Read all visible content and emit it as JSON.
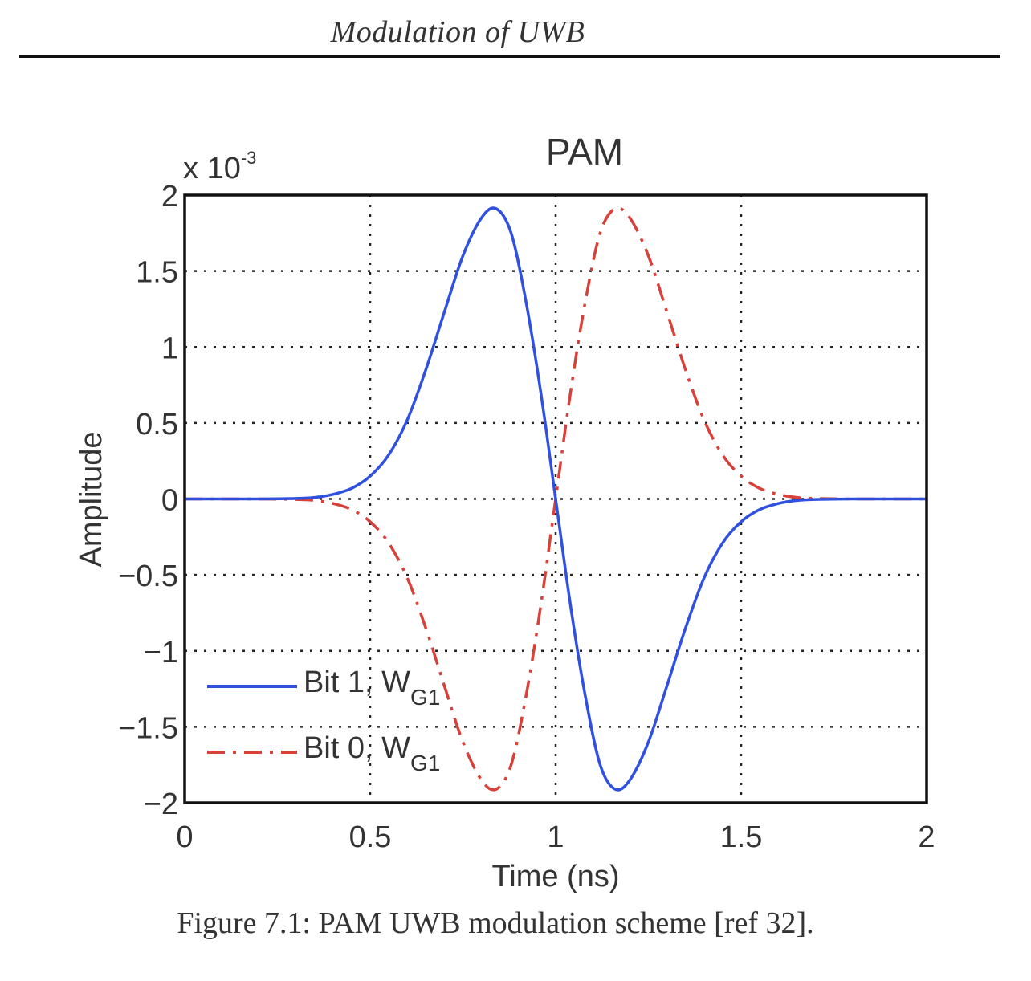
{
  "page": {
    "header": "Modulation of UWB",
    "caption": "Figure 7.1: PAM UWB modulation scheme [ref 32]."
  },
  "chart_data": {
    "type": "line",
    "title": "PAM",
    "xlabel": "Time (ns)",
    "ylabel": "Amplitude",
    "y_multiplier": "x 10",
    "y_multiplier_exponent": "-3",
    "xlim": [
      0,
      2
    ],
    "ylim": [
      -2,
      2
    ],
    "x_ticks": [
      "0",
      "0.5",
      "1",
      "1.5",
      "2"
    ],
    "y_ticks": [
      "−2",
      "−1.5",
      "−1",
      "−0.5",
      "0",
      "0.5",
      "1",
      "1.5",
      "2"
    ],
    "grid": true,
    "legend_position": "bottom-left",
    "series": [
      {
        "name": "Bit 1, W",
        "name_subscript": "G1",
        "color": "#3050e0",
        "style": "solid",
        "x": [
          0,
          0.1,
          0.2,
          0.3,
          0.35,
          0.4,
          0.45,
          0.5,
          0.55,
          0.6,
          0.65,
          0.7,
          0.75,
          0.8,
          0.84,
          0.88,
          0.92,
          0.96,
          1.0,
          1.04,
          1.08,
          1.12,
          1.16,
          1.2,
          1.25,
          1.3,
          1.35,
          1.4,
          1.45,
          1.5,
          1.55,
          1.6,
          1.65,
          1.7,
          1.8,
          1.9,
          2.0
        ],
        "y": [
          0,
          0,
          0,
          0.003,
          0.01,
          0.03,
          0.07,
          0.15,
          0.29,
          0.52,
          0.85,
          1.23,
          1.6,
          1.85,
          1.91,
          1.75,
          1.3,
          0.7,
          0,
          -0.7,
          -1.3,
          -1.75,
          -1.91,
          -1.85,
          -1.6,
          -1.23,
          -0.85,
          -0.52,
          -0.29,
          -0.15,
          -0.07,
          -0.03,
          -0.01,
          -0.003,
          0,
          0,
          0
        ]
      },
      {
        "name": "Bit 0, W",
        "name_subscript": "G1",
        "color": "#d8403a",
        "style": "dashdot",
        "x": [
          0,
          0.1,
          0.2,
          0.3,
          0.35,
          0.4,
          0.45,
          0.5,
          0.55,
          0.6,
          0.65,
          0.7,
          0.75,
          0.8,
          0.84,
          0.88,
          0.92,
          0.96,
          1.0,
          1.04,
          1.08,
          1.12,
          1.16,
          1.2,
          1.25,
          1.3,
          1.35,
          1.4,
          1.45,
          1.5,
          1.55,
          1.6,
          1.65,
          1.7,
          1.8,
          1.9,
          2.0
        ],
        "y": [
          0,
          0,
          0,
          -0.003,
          -0.01,
          -0.03,
          -0.07,
          -0.15,
          -0.29,
          -0.52,
          -0.85,
          -1.23,
          -1.6,
          -1.85,
          -1.91,
          -1.75,
          -1.3,
          -0.7,
          0,
          0.7,
          1.3,
          1.75,
          1.91,
          1.85,
          1.6,
          1.23,
          0.85,
          0.52,
          0.29,
          0.15,
          0.07,
          0.03,
          0.01,
          0.003,
          0,
          0,
          0
        ]
      }
    ]
  }
}
